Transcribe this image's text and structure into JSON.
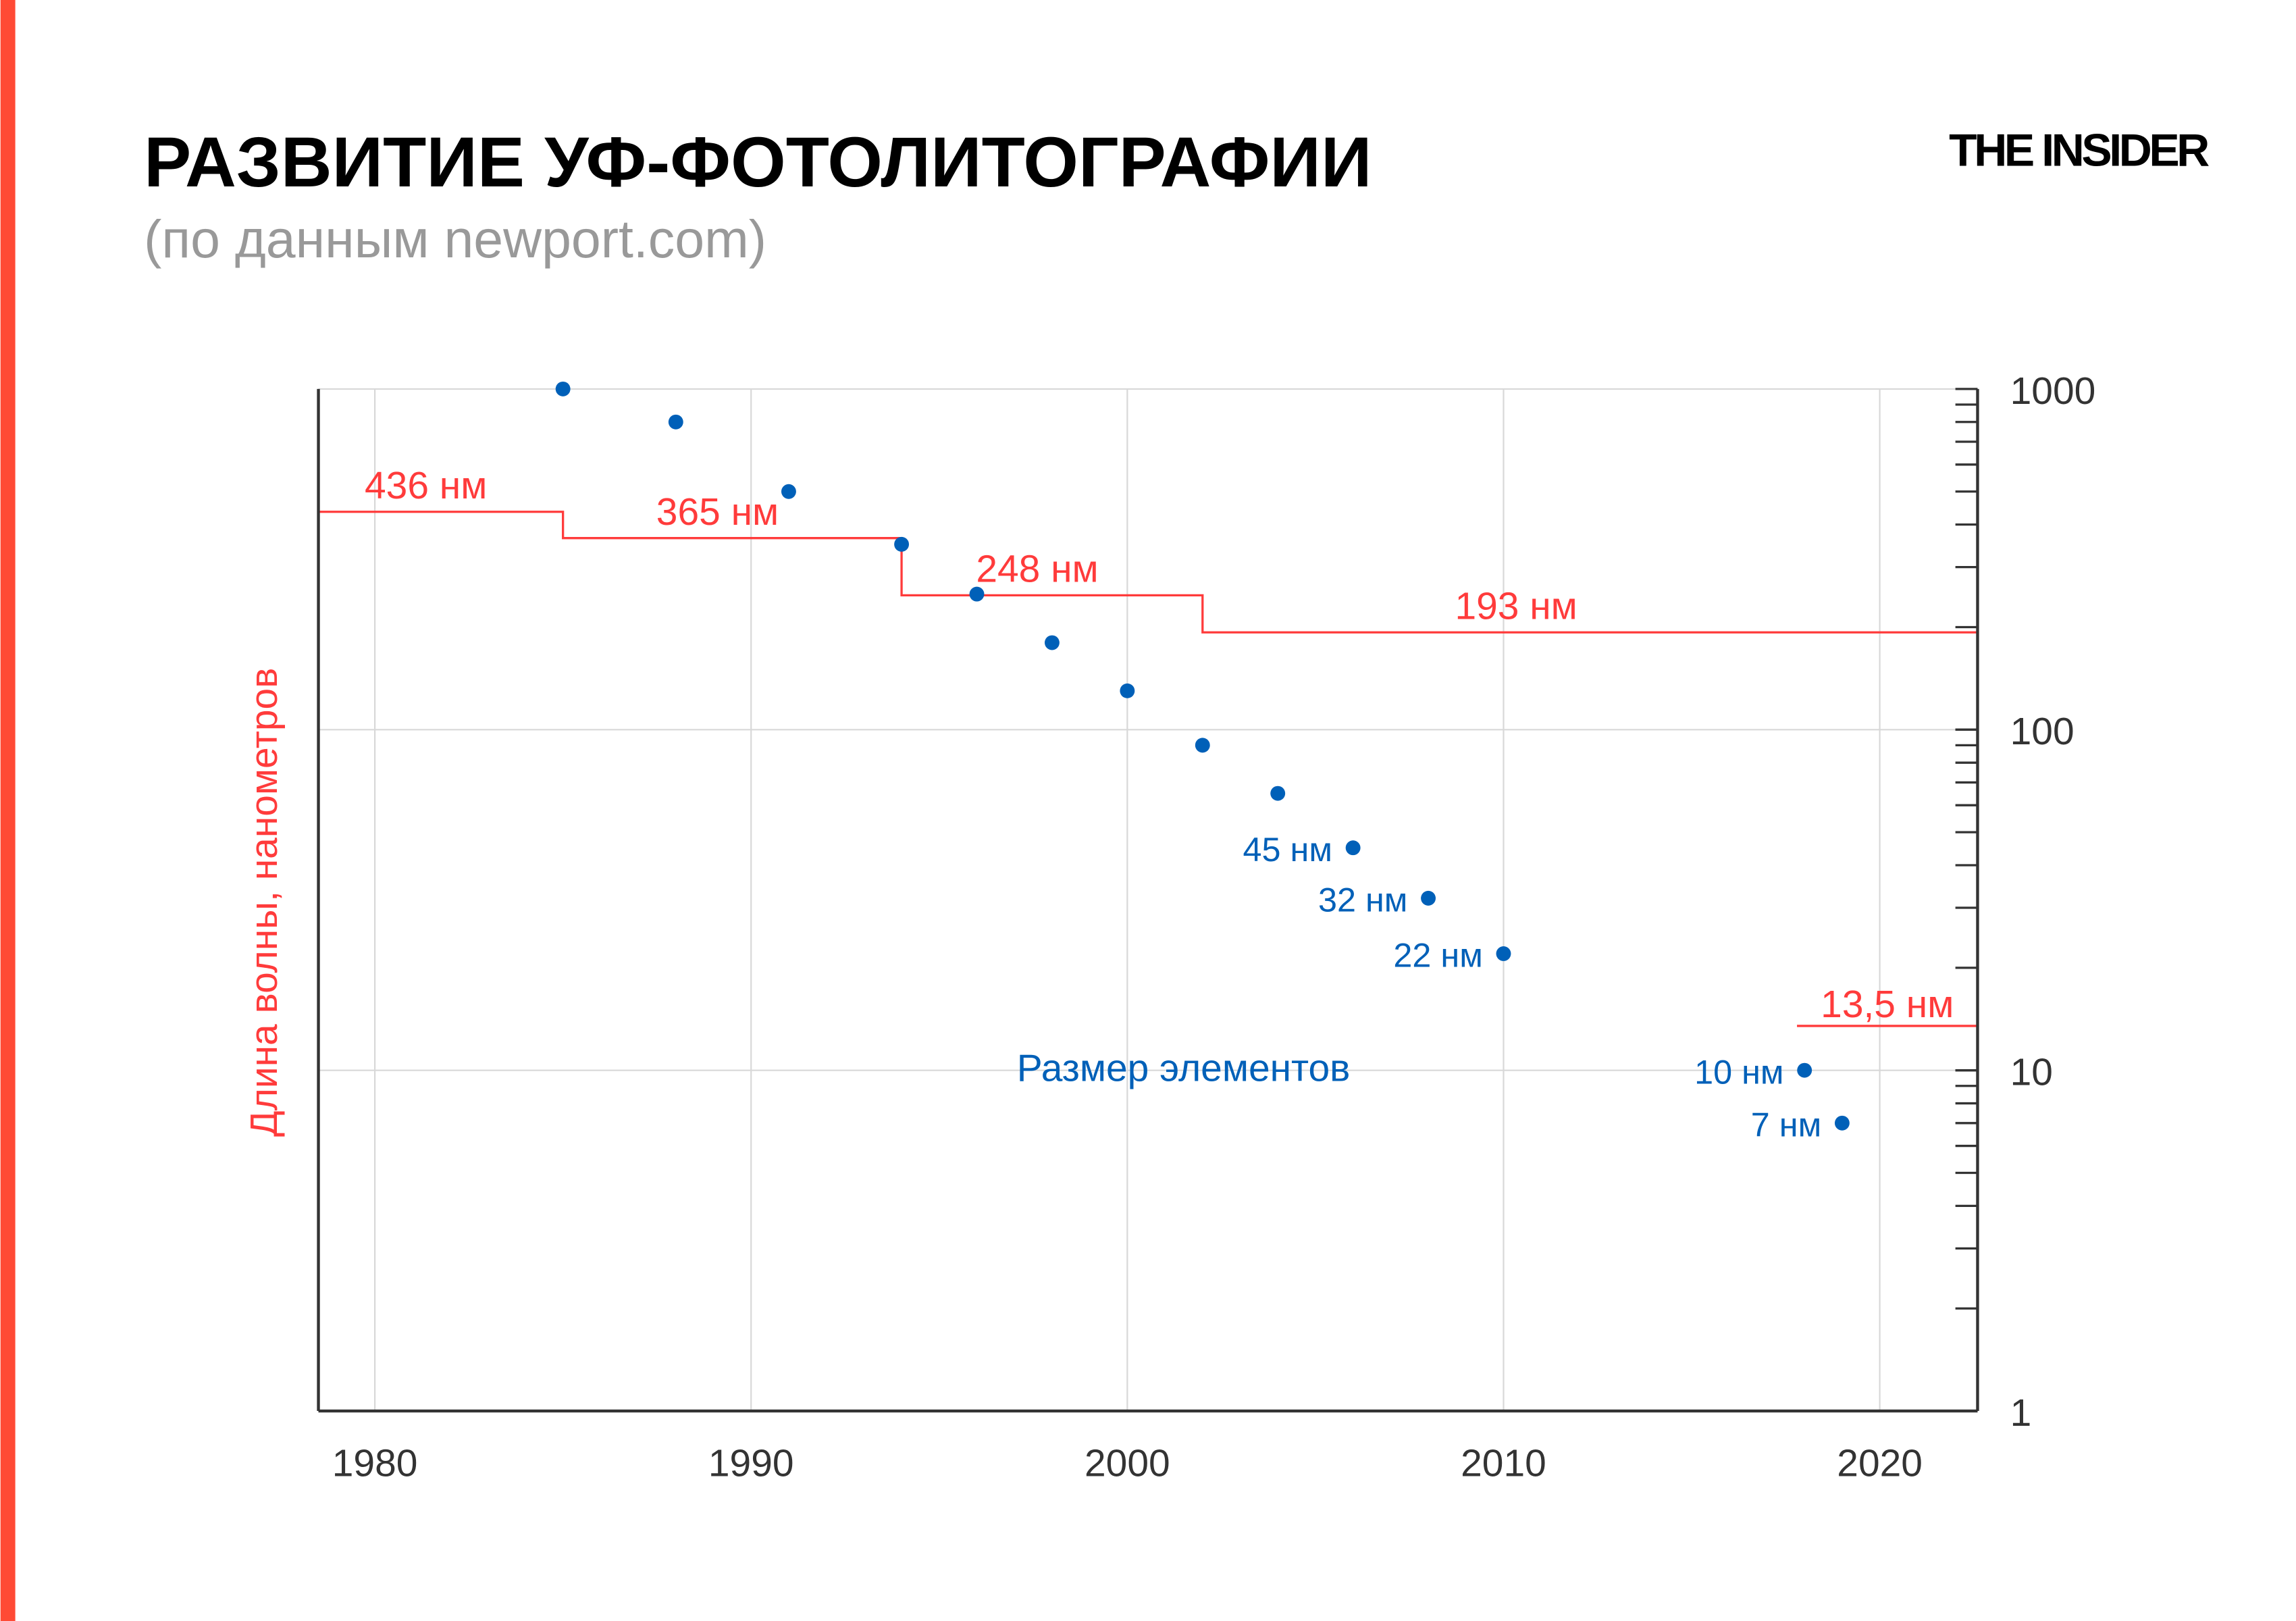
{
  "header": {
    "title": "РАЗВИТИЕ УФ-ФОТОЛИТОГРАФИИ",
    "subtitle": "(по данным newport.com)",
    "logo": "THE INSIDER"
  },
  "colors": {
    "accent_bar": "#ff4a35",
    "wavelength": "#ff3b3b",
    "feature_size": "#0060b8",
    "axis": "#333333",
    "grid": "#d8d8d8",
    "title": "#000000",
    "subtitle": "#999999"
  },
  "chart_data": {
    "type": "scatter",
    "title": "РАЗВИТИЕ УФ-ФОТОЛИТОГРАФИИ",
    "subtitle": "(по данным newport.com)",
    "ylabel": "Длина волны, нанометров",
    "xlabel": "",
    "x_scale": "linear",
    "y_scale": "log",
    "xlim": [
      1978.5,
      2022.6
    ],
    "ylim": [
      1,
      1000
    ],
    "x_ticks": [
      1980,
      1990,
      2000,
      2010,
      2020
    ],
    "y_ticks": [
      "1",
      "10",
      "100",
      "1000"
    ],
    "y_axis_side": "right",
    "grid": true,
    "feature_size": {
      "label": "Размер элементов",
      "points": [
        {
          "x": 1985,
          "y": 1000,
          "label": ""
        },
        {
          "x": 1988,
          "y": 800,
          "label": ""
        },
        {
          "x": 1991,
          "y": 500,
          "label": ""
        },
        {
          "x": 1994,
          "y": 350,
          "label": ""
        },
        {
          "x": 1996,
          "y": 250,
          "label": ""
        },
        {
          "x": 1998,
          "y": 180,
          "label": ""
        },
        {
          "x": 2000,
          "y": 130,
          "label": ""
        },
        {
          "x": 2002,
          "y": 90,
          "label": ""
        },
        {
          "x": 2004,
          "y": 65,
          "label": ""
        },
        {
          "x": 2006,
          "y": 45,
          "label": "45 нм"
        },
        {
          "x": 2008,
          "y": 32,
          "label": "32 нм"
        },
        {
          "x": 2010,
          "y": 22,
          "label": "22 нм"
        },
        {
          "x": 2018,
          "y": 10,
          "label": "10 нм"
        },
        {
          "x": 2019,
          "y": 7,
          "label": "7 нм"
        }
      ]
    },
    "wavelength_steps": [
      {
        "x_start": 1978.5,
        "x_end": 1985,
        "y": 436,
        "label": "436 нм"
      },
      {
        "x_start": 1985,
        "x_end": 1994,
        "y": 365,
        "label": "365 нм"
      },
      {
        "x_start": 1994,
        "x_end": 2002,
        "y": 248,
        "label": "248 нм"
      },
      {
        "x_start": 2002,
        "x_end": 2022.6,
        "y": 193,
        "label": "193 нм"
      }
    ],
    "euv_step": {
      "x_start": 2017.8,
      "x_end": 2022.6,
      "y": 13.5,
      "label": "13,5 нм"
    }
  }
}
